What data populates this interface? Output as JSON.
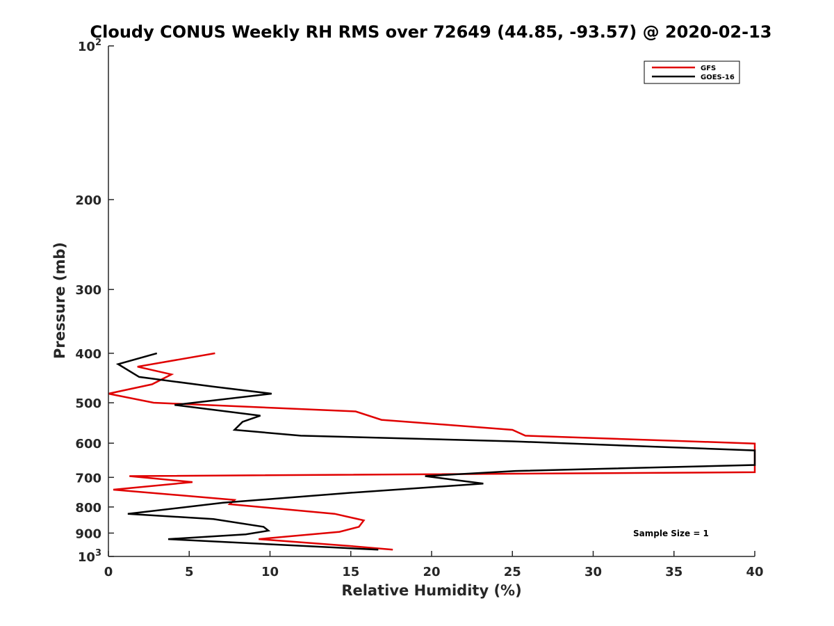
{
  "chart_data": {
    "type": "line",
    "title": "Cloudy CONUS Weekly RH RMS over 72649 (44.85, -93.57) @ 2020-02-13",
    "xlabel": "Relative Humidity (%)",
    "ylabel": "Pressure (mb)",
    "xlim": [
      0,
      40
    ],
    "ylim": [
      100,
      1000
    ],
    "yscale": "log",
    "y_reversed": true,
    "x_ticks": [
      "0",
      "5",
      "10",
      "15",
      "20",
      "25",
      "30",
      "35",
      "40"
    ],
    "y_ticks": [
      {
        "value": 100,
        "base": "10",
        "exp": "2"
      },
      {
        "value": 200,
        "label": "200"
      },
      {
        "value": 300,
        "label": "300"
      },
      {
        "value": 400,
        "label": "400"
      },
      {
        "value": 500,
        "label": "500"
      },
      {
        "value": 600,
        "label": "600"
      },
      {
        "value": 700,
        "label": "700"
      },
      {
        "value": 800,
        "label": "800"
      },
      {
        "value": 900,
        "label": "900"
      },
      {
        "value": 1000,
        "base": "10",
        "exp": "3"
      }
    ],
    "grid": false,
    "legend_position": "top-right",
    "series": [
      {
        "name": "GFS",
        "color": "#e00000",
        "points": [
          [
            6.6,
            400
          ],
          [
            1.8,
            425
          ],
          [
            3.9,
            440
          ],
          [
            2.7,
            460
          ],
          [
            0,
            480
          ],
          [
            2.8,
            500
          ],
          [
            15.3,
            520
          ],
          [
            16.9,
            540
          ],
          [
            25.0,
            565
          ],
          [
            25.8,
            580
          ],
          [
            40,
            601
          ],
          [
            40,
            684
          ],
          [
            1.3,
            696
          ],
          [
            5.2,
            715
          ],
          [
            0.3,
            740
          ],
          [
            7.8,
            775
          ],
          [
            7.5,
            790
          ],
          [
            14.0,
            825
          ],
          [
            15.8,
            850
          ],
          [
            15.5,
            875
          ],
          [
            14.3,
            895
          ],
          [
            9.3,
            925
          ],
          [
            15.1,
            955
          ],
          [
            17.6,
            970
          ]
        ]
      },
      {
        "name": "GOES-16",
        "color": "#000000",
        "points": [
          [
            3.0,
            400
          ],
          [
            0.6,
            420
          ],
          [
            1.9,
            445
          ],
          [
            6.5,
            465
          ],
          [
            10.1,
            480
          ],
          [
            4.1,
            505
          ],
          [
            9.4,
            530
          ],
          [
            8.3,
            545
          ],
          [
            7.8,
            565
          ],
          [
            11.9,
            580
          ],
          [
            25.0,
            595
          ],
          [
            40,
            620
          ],
          [
            40,
            662
          ],
          [
            25.2,
            680
          ],
          [
            19.6,
            696
          ],
          [
            23.2,
            720
          ],
          [
            15.1,
            750
          ],
          [
            7.1,
            785
          ],
          [
            1.2,
            825
          ],
          [
            6.5,
            845
          ],
          [
            9.6,
            875
          ],
          [
            9.9,
            890
          ],
          [
            8.5,
            905
          ],
          [
            3.7,
            925
          ],
          [
            16.7,
            970
          ]
        ]
      }
    ],
    "annotations": [
      "Sample Size = 1"
    ]
  }
}
